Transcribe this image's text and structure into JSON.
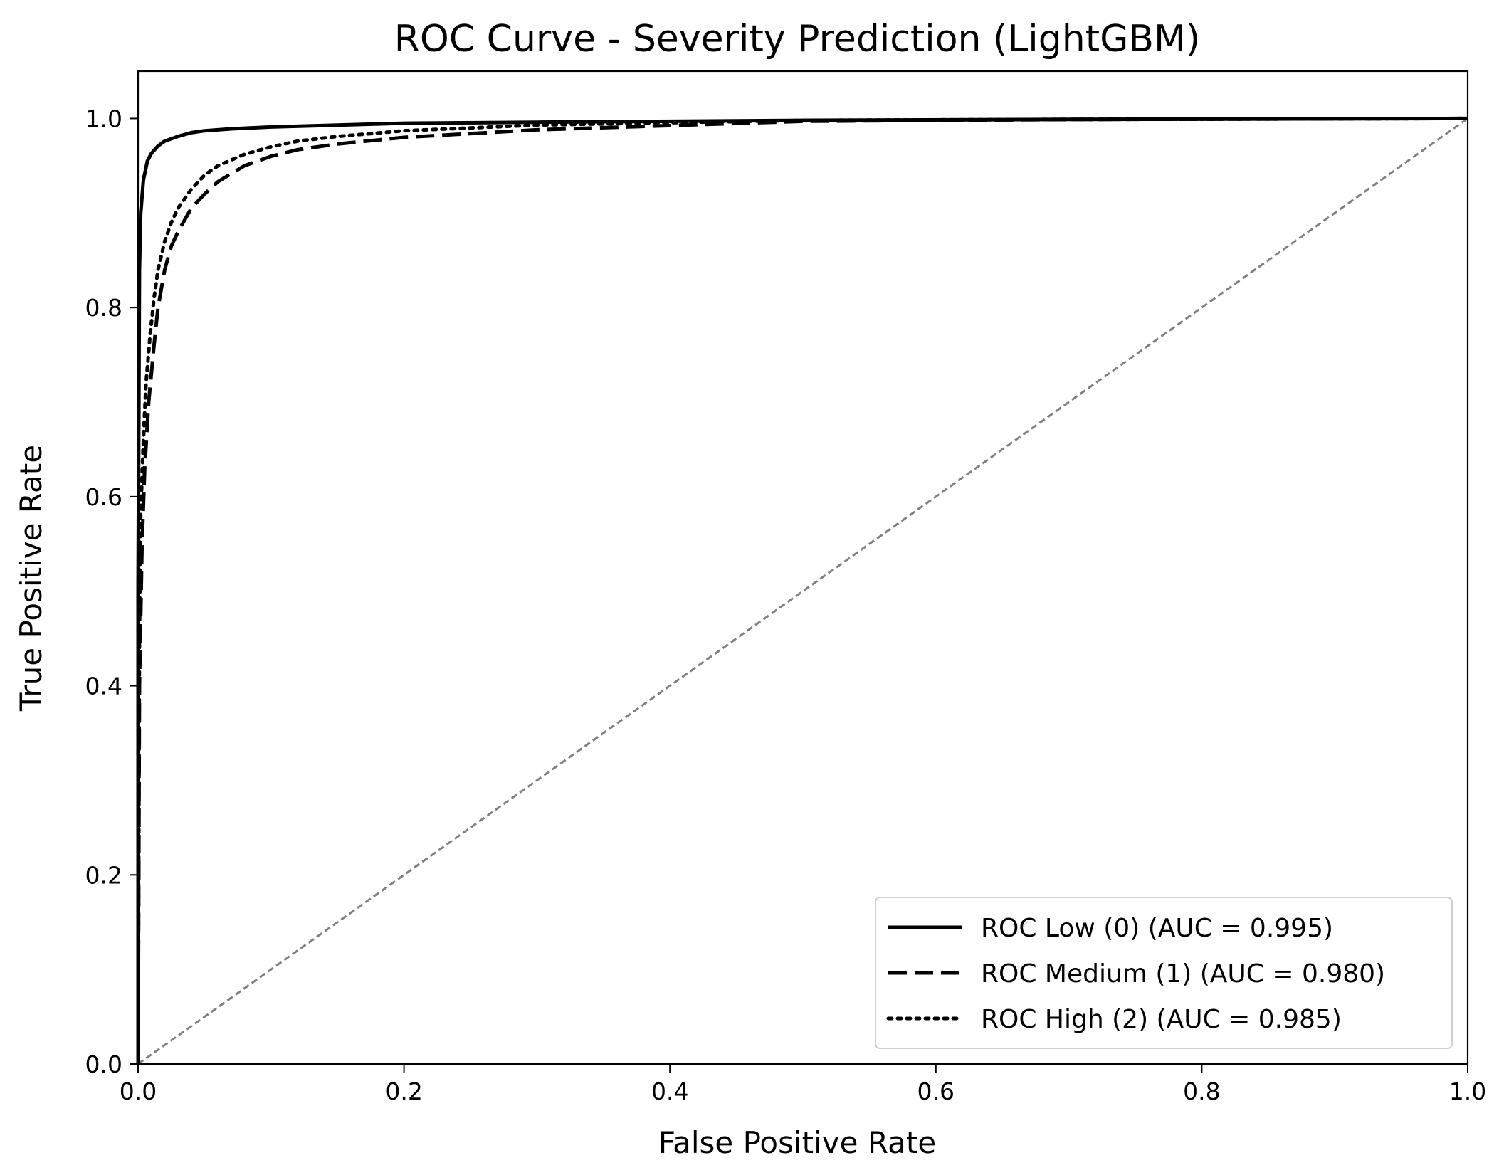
{
  "chart_data": {
    "type": "line",
    "title": "ROC Curve - Severity Prediction (LightGBM)",
    "xlabel": "False Positive Rate",
    "ylabel": "True Positive Rate",
    "xlim": [
      0.0,
      1.0
    ],
    "ylim": [
      0.0,
      1.05
    ],
    "xticks": [
      0.0,
      0.2,
      0.4,
      0.6,
      0.8,
      1.0
    ],
    "xtick_labels": [
      "0.0",
      "0.2",
      "0.4",
      "0.6",
      "0.8",
      "1.0"
    ],
    "yticks": [
      0.0,
      0.2,
      0.4,
      0.6,
      0.8,
      1.0
    ],
    "ytick_labels": [
      "0.0",
      "0.2",
      "0.4",
      "0.6",
      "0.8",
      "1.0"
    ],
    "grid": false,
    "legend_position": "bottom-right",
    "series": [
      {
        "name": "ROC Low (0) (AUC = 0.995)",
        "style": "solid",
        "color": "#000000",
        "x": [
          0.0,
          0.0,
          0.001,
          0.002,
          0.004,
          0.007,
          0.01,
          0.015,
          0.02,
          0.03,
          0.04,
          0.05,
          0.07,
          0.1,
          0.15,
          0.2,
          0.3,
          0.5,
          0.7,
          1.0
        ],
        "y": [
          0.0,
          0.5,
          0.84,
          0.9,
          0.935,
          0.955,
          0.963,
          0.971,
          0.976,
          0.981,
          0.985,
          0.987,
          0.989,
          0.991,
          0.993,
          0.995,
          0.996,
          0.998,
          0.999,
          1.0
        ]
      },
      {
        "name": "ROC Medium (1) (AUC = 0.980)",
        "style": "dashed",
        "color": "#000000",
        "x": [
          0.0,
          0.001,
          0.003,
          0.005,
          0.008,
          0.012,
          0.015,
          0.02,
          0.025,
          0.03,
          0.04,
          0.05,
          0.06,
          0.08,
          0.1,
          0.12,
          0.15,
          0.2,
          0.3,
          0.5,
          0.7,
          1.0
        ],
        "y": [
          0.0,
          0.4,
          0.55,
          0.63,
          0.7,
          0.76,
          0.8,
          0.84,
          0.865,
          0.88,
          0.905,
          0.92,
          0.933,
          0.95,
          0.96,
          0.967,
          0.973,
          0.98,
          0.988,
          0.997,
          0.999,
          1.0
        ]
      },
      {
        "name": "ROC High (2) (AUC = 0.985)",
        "style": "dotted",
        "color": "#000000",
        "x": [
          0.0,
          0.001,
          0.002,
          0.004,
          0.006,
          0.009,
          0.012,
          0.015,
          0.02,
          0.025,
          0.03,
          0.04,
          0.05,
          0.06,
          0.08,
          0.1,
          0.12,
          0.15,
          0.2,
          0.3,
          0.5,
          0.7,
          1.0
        ],
        "y": [
          0.0,
          0.45,
          0.58,
          0.66,
          0.72,
          0.77,
          0.81,
          0.84,
          0.87,
          0.89,
          0.905,
          0.925,
          0.94,
          0.95,
          0.962,
          0.97,
          0.976,
          0.981,
          0.987,
          0.993,
          0.998,
          0.999,
          1.0
        ]
      },
      {
        "name": "",
        "style": "dashed-gray",
        "color": "#808080",
        "x": [
          0.0,
          1.0
        ],
        "y": [
          0.0,
          1.0
        ]
      }
    ]
  }
}
